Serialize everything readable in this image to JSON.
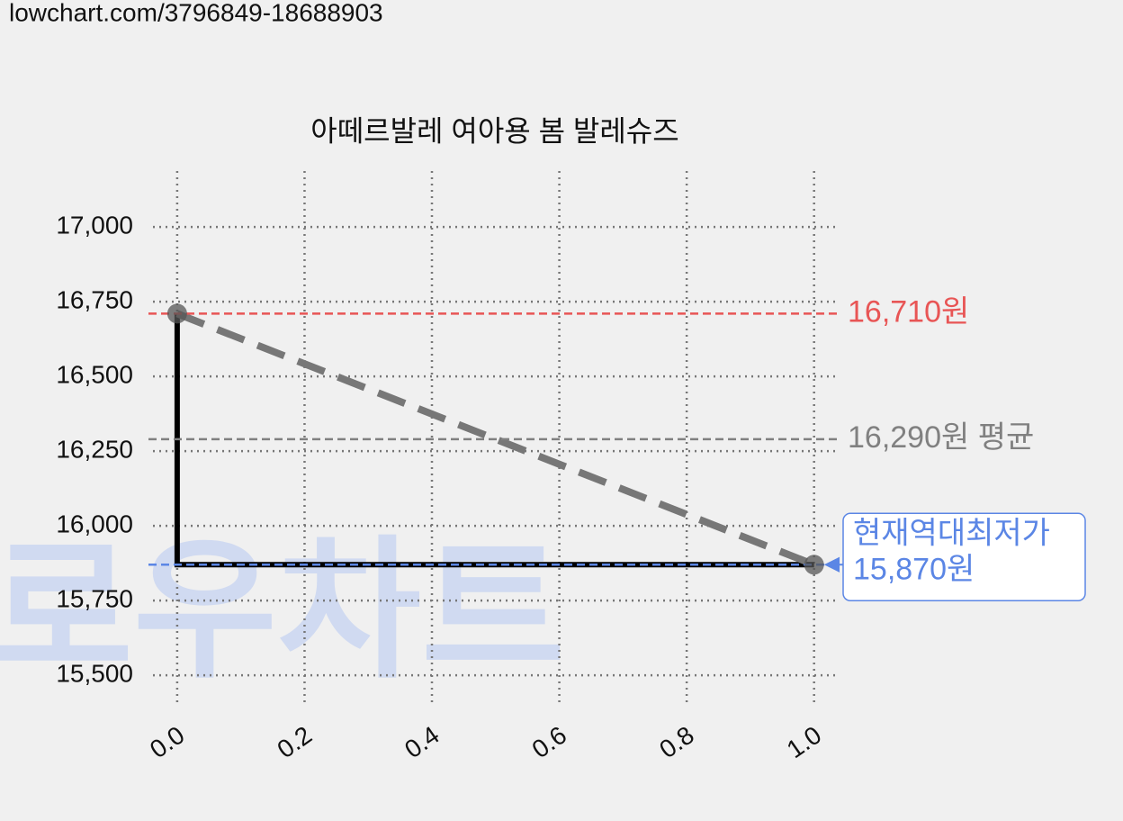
{
  "url": "lowchart.com/3796849-18688903",
  "watermark": "로우차트",
  "chart_data": {
    "type": "line",
    "title": "아떼르발레 여아용 봄 발레슈즈",
    "xlim": [
      -0.038,
      1.04
    ],
    "ylim": [
      15395,
      17187
    ],
    "xticks": [
      {
        "value": 0,
        "label": "0.0"
      },
      {
        "value": 0.2,
        "label": "0.2"
      },
      {
        "value": 0.4,
        "label": "0.4"
      },
      {
        "value": 0.6,
        "label": "0.6"
      },
      {
        "value": 0.8,
        "label": "0.8"
      },
      {
        "value": 1,
        "label": "1.0"
      }
    ],
    "yticks": [
      {
        "value": 15500,
        "label": "15,500"
      },
      {
        "value": 15750,
        "label": "15,750"
      },
      {
        "value": 16000,
        "label": "16,000"
      },
      {
        "value": 16250,
        "label": "16,250"
      },
      {
        "value": 16500,
        "label": "16,500"
      },
      {
        "value": 16750,
        "label": "16,750"
      },
      {
        "value": 17000,
        "label": "17,000"
      }
    ],
    "grid": true,
    "series": [
      {
        "x": [
          0,
          1
        ],
        "values": [
          16710,
          15870
        ],
        "color": "#000000",
        "drawstyle": "steps-pre",
        "linestyle": "solid"
      },
      {
        "x": [
          0,
          1
        ],
        "values": [
          16710,
          15870
        ],
        "color": "#777777",
        "drawstyle": "default",
        "linestyle": "dashed",
        "markers": true
      }
    ],
    "hlines": [
      {
        "value": 16710,
        "label": "16,710원",
        "color": "#e85555"
      },
      {
        "value": 16290,
        "label": "16,290원 평균",
        "color": "#808080"
      },
      {
        "value": 15870,
        "label_lines": [
          "현재역대최저가",
          "15,870원"
        ],
        "color": "#5b86e5",
        "boxed": true
      }
    ]
  }
}
